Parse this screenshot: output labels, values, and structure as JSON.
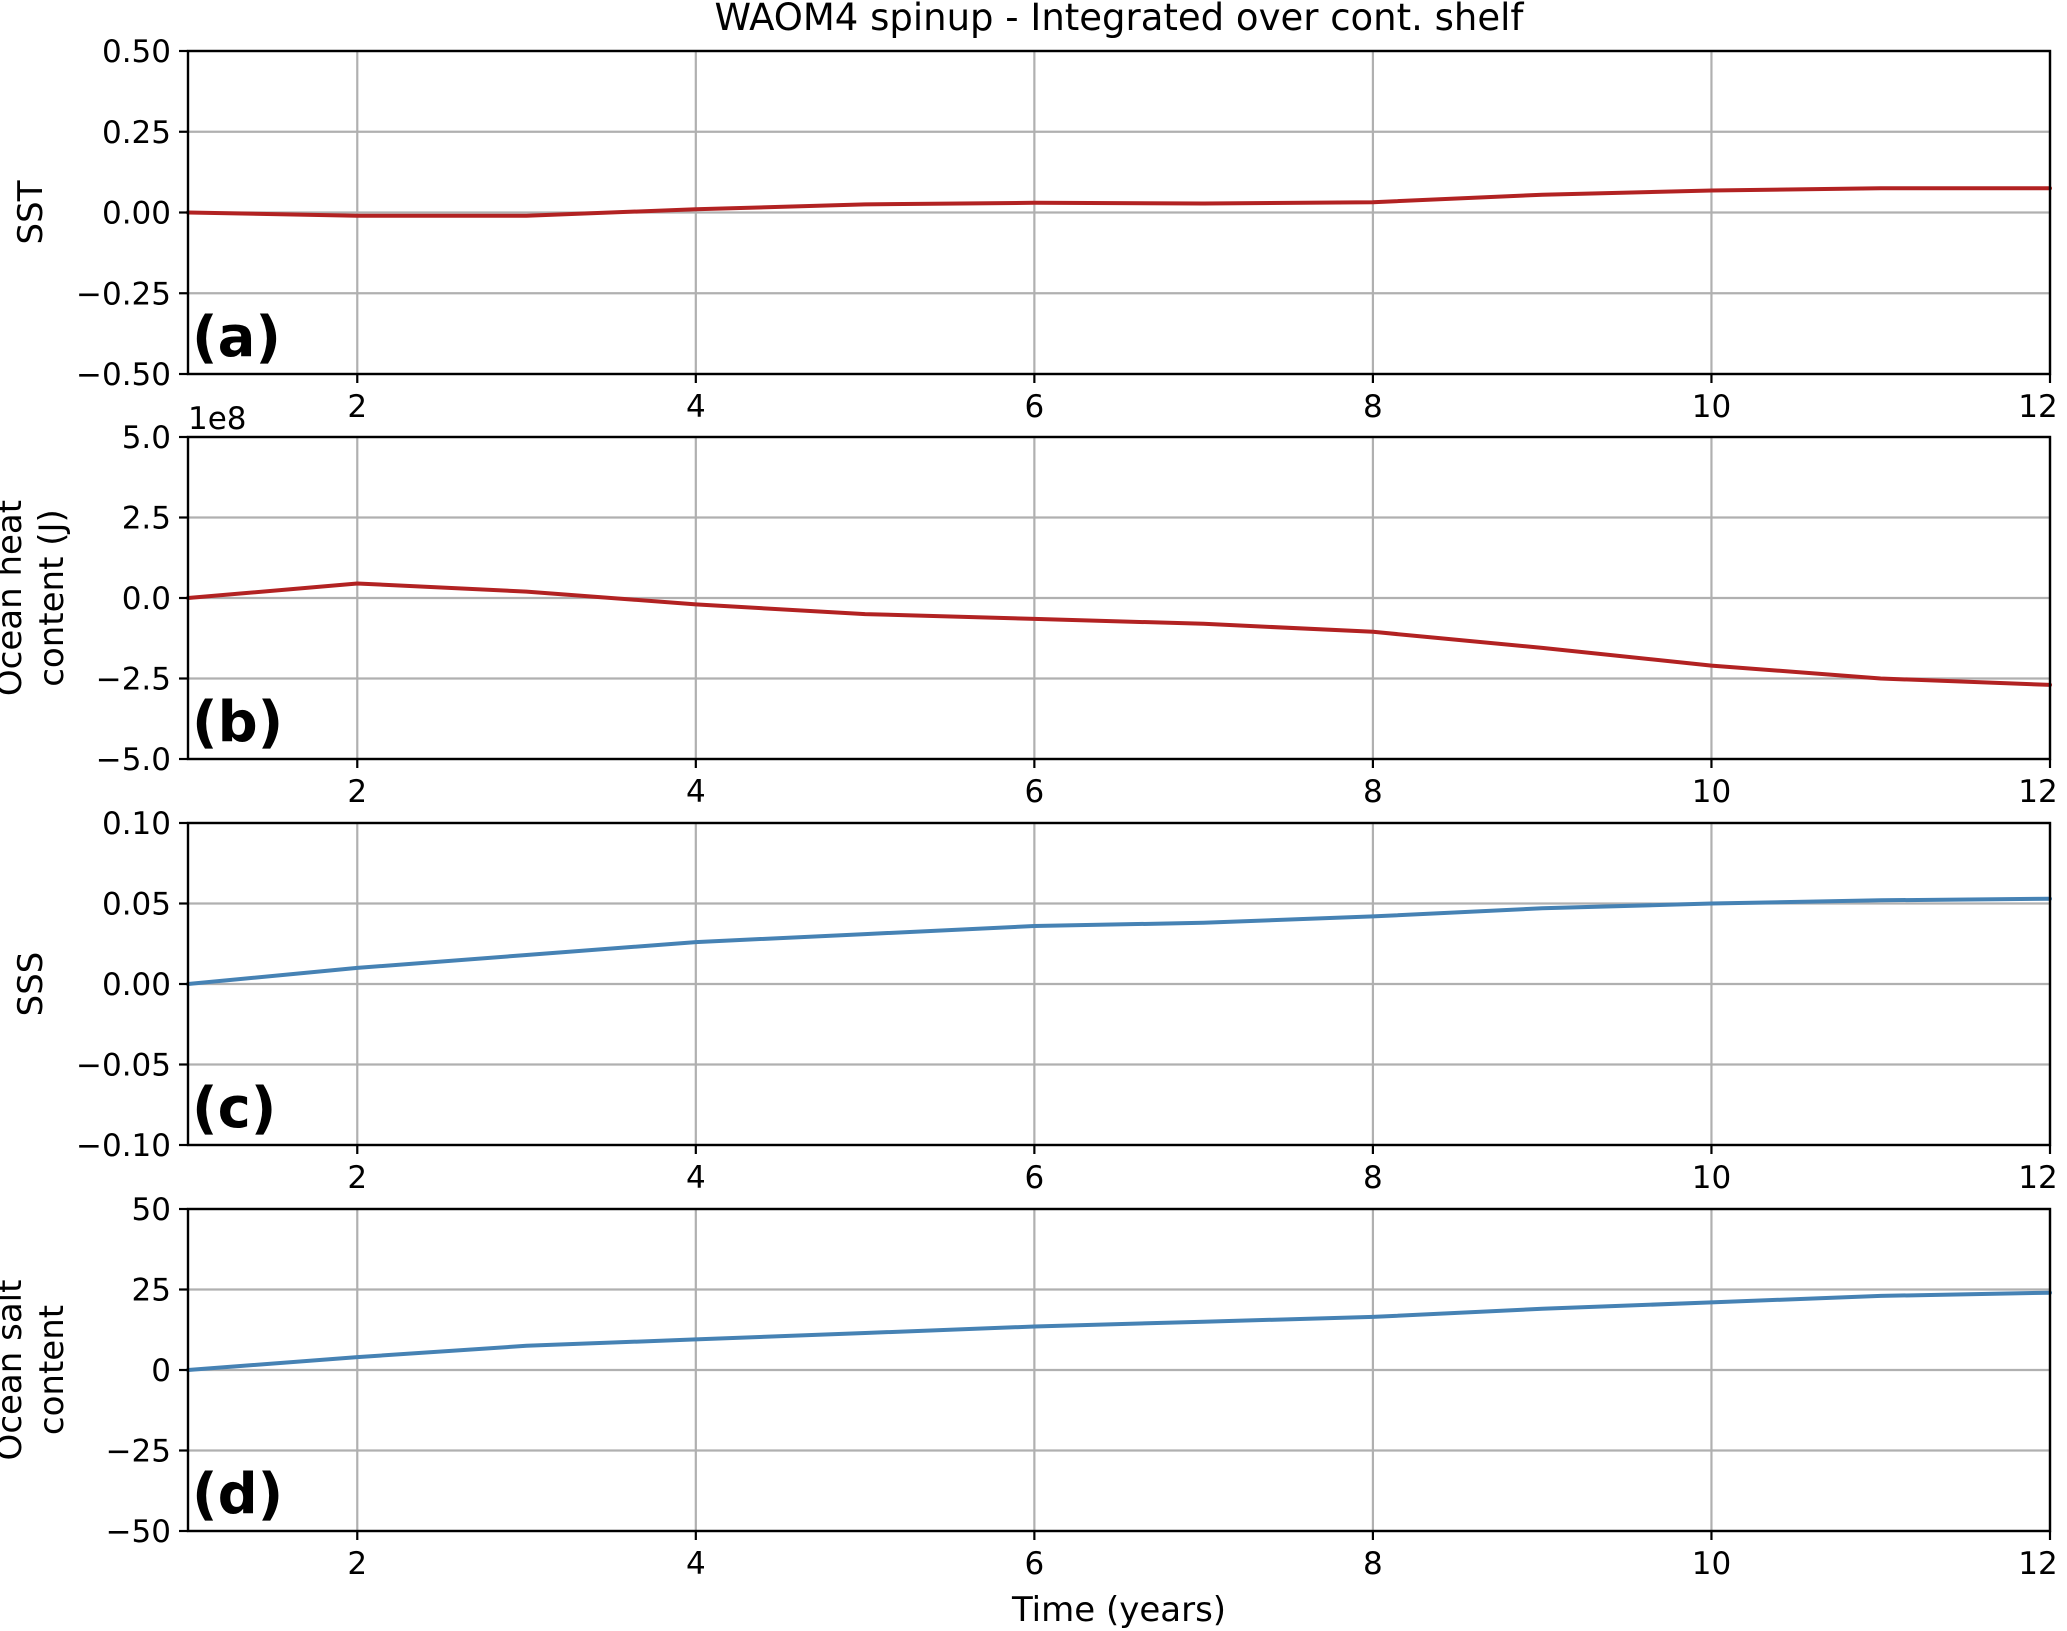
{
  "title": "WAOM4 spinup - Integrated over cont. shelf",
  "x_axis_label": "Time (years)",
  "colors": {
    "red_series": "#b22222",
    "blue_series": "#4682b4"
  },
  "chart_data": [
    {
      "type": "line",
      "panel_label": "(a)",
      "ylabel_lines": [
        "SST"
      ],
      "offset_label": "",
      "xlim": [
        1,
        12
      ],
      "ylim": [
        -0.5,
        0.5
      ],
      "xticks": [
        2,
        4,
        6,
        8,
        10,
        12
      ],
      "xtick_labels": [
        "2",
        "4",
        "6",
        "8",
        "10",
        "12"
      ],
      "yticks": [
        -0.5,
        -0.25,
        0,
        0.25,
        0.5
      ],
      "ytick_labels": [
        "−0.50",
        "−0.25",
        "0.00",
        "0.25",
        "0.50"
      ],
      "grid": true,
      "series": [
        {
          "color": "#b22222",
          "x": [
            1,
            2,
            3,
            4,
            5,
            6,
            7,
            8,
            9,
            10,
            11,
            12
          ],
          "y": [
            0.0,
            -0.01,
            -0.01,
            0.01,
            0.025,
            0.03,
            0.028,
            0.032,
            0.055,
            0.068,
            0.075,
            0.075
          ]
        }
      ]
    },
    {
      "type": "line",
      "panel_label": "(b)",
      "ylabel_lines": [
        "Ocean heat",
        "content (J)"
      ],
      "offset_label": "1e8",
      "xlim": [
        1,
        12
      ],
      "ylim": [
        -5,
        5
      ],
      "xticks": [
        2,
        4,
        6,
        8,
        10,
        12
      ],
      "xtick_labels": [
        "2",
        "4",
        "6",
        "8",
        "10",
        "12"
      ],
      "yticks": [
        -5,
        -2.5,
        0,
        2.5,
        5
      ],
      "ytick_labels": [
        "−5.0",
        "−2.5",
        "0.0",
        "2.5",
        "5.0"
      ],
      "grid": true,
      "series": [
        {
          "color": "#b22222",
          "x": [
            1,
            2,
            3,
            4,
            5,
            6,
            7,
            8,
            9,
            10,
            11,
            12
          ],
          "y": [
            0.0,
            0.45,
            0.2,
            -0.2,
            -0.5,
            -0.65,
            -0.8,
            -1.05,
            -1.55,
            -2.1,
            -2.5,
            -2.7
          ]
        }
      ]
    },
    {
      "type": "line",
      "panel_label": "(c)",
      "ylabel_lines": [
        "SSS"
      ],
      "offset_label": "",
      "xlim": [
        1,
        12
      ],
      "ylim": [
        -0.1,
        0.1
      ],
      "xticks": [
        2,
        4,
        6,
        8,
        10,
        12
      ],
      "xtick_labels": [
        "2",
        "4",
        "6",
        "8",
        "10",
        "12"
      ],
      "yticks": [
        -0.1,
        -0.05,
        0,
        0.05,
        0.1
      ],
      "ytick_labels": [
        "−0.10",
        "−0.05",
        "0.00",
        "0.05",
        "0.10"
      ],
      "grid": true,
      "series": [
        {
          "color": "#4682b4",
          "x": [
            1,
            2,
            3,
            4,
            5,
            6,
            7,
            8,
            9,
            10,
            11,
            12
          ],
          "y": [
            0.0,
            0.01,
            0.018,
            0.026,
            0.031,
            0.036,
            0.038,
            0.042,
            0.047,
            0.05,
            0.052,
            0.053
          ]
        }
      ]
    },
    {
      "type": "line",
      "panel_label": "(d)",
      "ylabel_lines": [
        "Ocean salt",
        "content"
      ],
      "offset_label": "",
      "xlim": [
        1,
        12
      ],
      "ylim": [
        -50,
        50
      ],
      "xticks": [
        2,
        4,
        6,
        8,
        10,
        12
      ],
      "xtick_labels": [
        "2",
        "4",
        "6",
        "8",
        "10",
        "12"
      ],
      "yticks": [
        -50,
        -25,
        0,
        25,
        50
      ],
      "ytick_labels": [
        "−50",
        "−25",
        "0",
        "25",
        "50"
      ],
      "grid": true,
      "series": [
        {
          "color": "#4682b4",
          "x": [
            1,
            2,
            3,
            4,
            5,
            6,
            7,
            8,
            9,
            10,
            11,
            12
          ],
          "y": [
            0,
            4,
            7.5,
            9.5,
            11.5,
            13.5,
            15,
            16.5,
            19,
            21,
            23,
            24
          ]
        }
      ]
    }
  ]
}
